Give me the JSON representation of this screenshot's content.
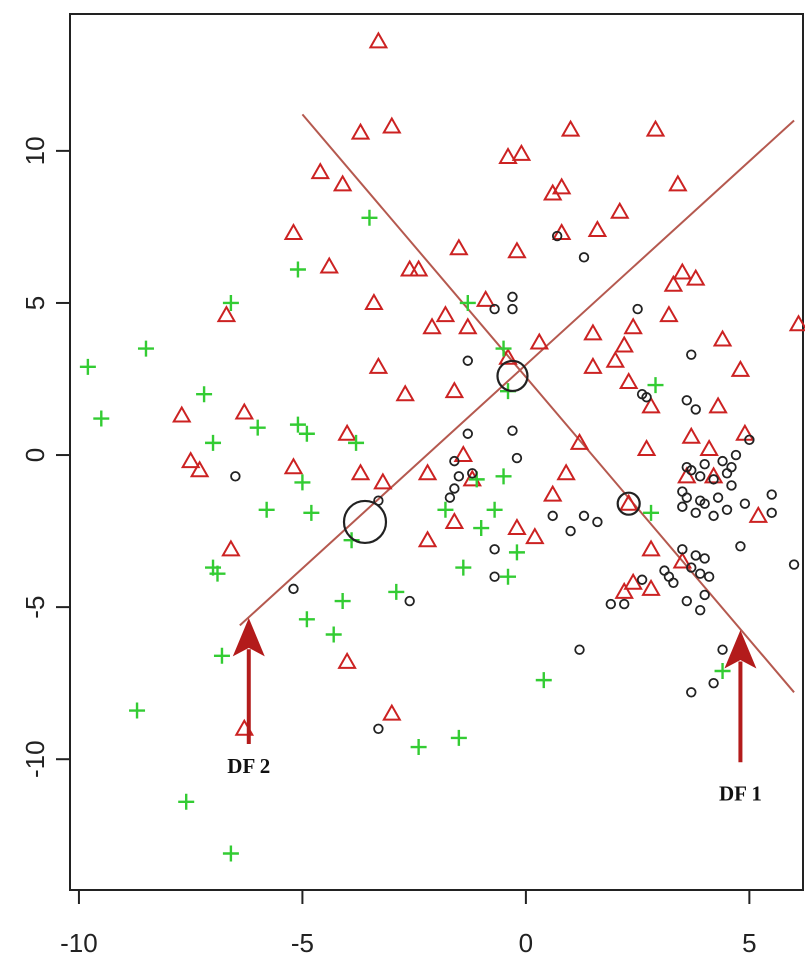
{
  "chart_data": {
    "type": "scatter",
    "title": "",
    "xlabel": "",
    "ylabel": "",
    "xlim": [
      -10.2,
      6.2
    ],
    "ylim": [
      -14.3,
      14.5
    ],
    "x_ticks": [
      -10,
      -5,
      0,
      5
    ],
    "x_tick_labels": [
      "-10",
      "-5",
      "0",
      "5"
    ],
    "y_ticks": [
      -10,
      -5,
      0,
      5,
      10
    ],
    "y_tick_labels": [
      "-10",
      "-5",
      "0",
      "5",
      "10"
    ],
    "grid": false,
    "legend": "none",
    "series": [
      {
        "marker": "triangle",
        "color": "#cc2222",
        "points": [
          [
            -3.3,
            13.6
          ],
          [
            -3.7,
            10.6
          ],
          [
            -3.0,
            10.8
          ],
          [
            -0.4,
            9.8
          ],
          [
            -0.1,
            9.9
          ],
          [
            1.0,
            10.7
          ],
          [
            2.9,
            10.7
          ],
          [
            -4.6,
            9.3
          ],
          [
            -4.1,
            8.9
          ],
          [
            0.6,
            8.6
          ],
          [
            0.8,
            8.8
          ],
          [
            3.4,
            8.9
          ],
          [
            2.1,
            8.0
          ],
          [
            -5.2,
            7.3
          ],
          [
            -1.5,
            6.8
          ],
          [
            -0.2,
            6.7
          ],
          [
            0.8,
            7.3
          ],
          [
            1.6,
            7.4
          ],
          [
            3.5,
            6.0
          ],
          [
            -4.4,
            6.2
          ],
          [
            -2.6,
            6.1
          ],
          [
            -2.4,
            6.1
          ],
          [
            3.8,
            5.8
          ],
          [
            3.3,
            5.6
          ],
          [
            -3.4,
            5.0
          ],
          [
            -1.8,
            4.6
          ],
          [
            -2.1,
            4.2
          ],
          [
            -1.3,
            4.2
          ],
          [
            -0.9,
            5.1
          ],
          [
            3.2,
            4.6
          ],
          [
            2.4,
            4.2
          ],
          [
            1.5,
            4.0
          ],
          [
            2.2,
            3.6
          ],
          [
            4.4,
            3.8
          ],
          [
            -6.7,
            4.6
          ],
          [
            0.3,
            3.7
          ],
          [
            -0.4,
            3.2
          ],
          [
            -3.3,
            2.9
          ],
          [
            1.5,
            2.9
          ],
          [
            2.0,
            3.1
          ],
          [
            4.8,
            2.8
          ],
          [
            2.3,
            2.4
          ],
          [
            -2.7,
            2.0
          ],
          [
            -1.6,
            2.1
          ],
          [
            2.8,
            1.6
          ],
          [
            4.3,
            1.6
          ],
          [
            -7.7,
            1.3
          ],
          [
            -6.3,
            1.4
          ],
          [
            -4.0,
            0.7
          ],
          [
            1.2,
            0.4
          ],
          [
            3.7,
            0.6
          ],
          [
            4.9,
            0.7
          ],
          [
            -7.5,
            -0.2
          ],
          [
            -7.3,
            -0.5
          ],
          [
            -5.2,
            -0.4
          ],
          [
            -3.7,
            -0.6
          ],
          [
            -2.2,
            -0.6
          ],
          [
            -1.4,
            0.0
          ],
          [
            0.9,
            -0.6
          ],
          [
            2.7,
            0.2
          ],
          [
            4.1,
            0.2
          ],
          [
            -3.2,
            -0.9
          ],
          [
            -1.2,
            -0.8
          ],
          [
            0.6,
            -1.3
          ],
          [
            3.6,
            -0.7
          ],
          [
            4.2,
            -0.7
          ],
          [
            -2.2,
            -2.8
          ],
          [
            -1.6,
            -2.2
          ],
          [
            -0.2,
            -2.4
          ],
          [
            0.2,
            -2.7
          ],
          [
            2.3,
            -1.6
          ],
          [
            2.8,
            -3.1
          ],
          [
            -6.6,
            -3.1
          ],
          [
            3.5,
            -3.5
          ],
          [
            2.4,
            -4.2
          ],
          [
            2.8,
            -4.4
          ],
          [
            2.2,
            -4.5
          ],
          [
            -4.0,
            -6.8
          ],
          [
            -6.3,
            -9.0
          ],
          [
            -3.0,
            -8.5
          ],
          [
            6.1,
            4.3
          ],
          [
            5.2,
            -2.0
          ]
        ]
      },
      {
        "marker": "plus",
        "color": "#33cc33",
        "points": [
          [
            -3.5,
            7.8
          ],
          [
            -5.1,
            6.1
          ],
          [
            -6.6,
            5.0
          ],
          [
            -1.3,
            5.0
          ],
          [
            -9.8,
            2.9
          ],
          [
            -8.5,
            3.5
          ],
          [
            -0.5,
            3.5
          ],
          [
            -9.5,
            1.2
          ],
          [
            -7.2,
            2.0
          ],
          [
            -0.4,
            2.1
          ],
          [
            2.9,
            2.3
          ],
          [
            -7.0,
            0.4
          ],
          [
            -6.0,
            0.9
          ],
          [
            -5.1,
            1.0
          ],
          [
            -4.9,
            0.7
          ],
          [
            -3.8,
            0.4
          ],
          [
            -5.0,
            -0.9
          ],
          [
            -1.1,
            -0.8
          ],
          [
            -0.5,
            -0.7
          ],
          [
            -5.8,
            -1.8
          ],
          [
            -4.8,
            -1.9
          ],
          [
            -1.8,
            -1.8
          ],
          [
            -1.0,
            -2.4
          ],
          [
            -0.7,
            -1.8
          ],
          [
            2.8,
            -1.9
          ],
          [
            -3.9,
            -2.8
          ],
          [
            -0.2,
            -3.2
          ],
          [
            -7.0,
            -3.7
          ],
          [
            -6.9,
            -3.9
          ],
          [
            -1.4,
            -3.7
          ],
          [
            -0.4,
            -4.0
          ],
          [
            -2.9,
            -4.5
          ],
          [
            -4.1,
            -4.8
          ],
          [
            -4.9,
            -5.4
          ],
          [
            -4.3,
            -5.9
          ],
          [
            -6.8,
            -6.6
          ],
          [
            0.4,
            -7.4
          ],
          [
            4.4,
            -7.1
          ],
          [
            -8.7,
            -8.4
          ],
          [
            -2.4,
            -9.6
          ],
          [
            -1.5,
            -9.3
          ],
          [
            -7.6,
            -11.4
          ],
          [
            -6.6,
            -13.1
          ]
        ]
      },
      {
        "marker": "circle",
        "color": "#222222",
        "points": [
          [
            1.3,
            6.5
          ],
          [
            0.7,
            7.2
          ],
          [
            -0.3,
            5.2
          ],
          [
            -0.7,
            4.8
          ],
          [
            -0.3,
            4.8
          ],
          [
            2.5,
            4.8
          ],
          [
            -1.3,
            3.1
          ],
          [
            3.7,
            3.3
          ],
          [
            2.6,
            2.0
          ],
          [
            2.7,
            1.9
          ],
          [
            3.6,
            1.8
          ],
          [
            3.8,
            1.5
          ],
          [
            5.0,
            0.5
          ],
          [
            -1.3,
            0.7
          ],
          [
            -0.3,
            0.8
          ],
          [
            -6.5,
            -0.7
          ],
          [
            -1.6,
            -0.2
          ],
          [
            -1.5,
            -0.7
          ],
          [
            -1.2,
            -0.6
          ],
          [
            -0.2,
            -0.1
          ],
          [
            -1.6,
            -1.1
          ],
          [
            -1.7,
            -1.4
          ],
          [
            -3.3,
            -1.5
          ],
          [
            0.6,
            -2.0
          ],
          [
            1.3,
            -2.0
          ],
          [
            1.6,
            -2.2
          ],
          [
            1.0,
            -2.5
          ],
          [
            -0.7,
            -3.1
          ],
          [
            -0.7,
            -4.0
          ],
          [
            -5.2,
            -4.4
          ],
          [
            -2.6,
            -4.8
          ],
          [
            1.9,
            -4.9
          ],
          [
            2.2,
            -4.9
          ],
          [
            2.6,
            -4.1
          ],
          [
            3.1,
            -3.8
          ],
          [
            3.2,
            -4.0
          ],
          [
            3.3,
            -4.2
          ],
          [
            3.6,
            -0.4
          ],
          [
            3.7,
            -0.5
          ],
          [
            3.9,
            -0.7
          ],
          [
            4.0,
            -0.3
          ],
          [
            4.2,
            -0.8
          ],
          [
            4.4,
            -0.2
          ],
          [
            4.5,
            -0.6
          ],
          [
            4.7,
            0.0
          ],
          [
            4.6,
            -0.4
          ],
          [
            4.6,
            -1.0
          ],
          [
            3.5,
            -1.2
          ],
          [
            3.6,
            -1.4
          ],
          [
            3.9,
            -1.5
          ],
          [
            4.0,
            -1.6
          ],
          [
            4.3,
            -1.4
          ],
          [
            4.5,
            -1.8
          ],
          [
            4.9,
            -1.6
          ],
          [
            3.5,
            -1.7
          ],
          [
            3.8,
            -1.9
          ],
          [
            4.2,
            -2.0
          ],
          [
            3.5,
            -3.1
          ],
          [
            3.8,
            -3.3
          ],
          [
            4.0,
            -3.4
          ],
          [
            3.7,
            -3.7
          ],
          [
            3.9,
            -3.9
          ],
          [
            4.1,
            -4.0
          ],
          [
            4.0,
            -4.6
          ],
          [
            3.6,
            -4.8
          ],
          [
            3.9,
            -5.1
          ],
          [
            4.8,
            -3.0
          ],
          [
            5.5,
            -1.3
          ],
          [
            5.5,
            -1.9
          ],
          [
            6.0,
            -3.6
          ],
          [
            4.4,
            -6.4
          ],
          [
            3.7,
            -7.8
          ],
          [
            4.2,
            -7.5
          ],
          [
            1.2,
            -6.4
          ],
          [
            -3.3,
            -9.0
          ]
        ]
      }
    ],
    "centroids": [
      [
        -3.6,
        -2.2
      ],
      [
        -0.3,
        2.6
      ],
      [
        2.3,
        -1.6
      ]
    ],
    "discriminant_lines": [
      {
        "from": [
          -5.0,
          11.2
        ],
        "to": [
          6.0,
          -7.8
        ]
      },
      {
        "from": [
          -6.4,
          -5.6
        ],
        "to": [
          6.0,
          11.0
        ]
      }
    ],
    "annotations": [
      {
        "text": "DF 2",
        "x": -6.2,
        "y": -10.0,
        "arrow_tip": [
          -6.2,
          -5.4
        ]
      },
      {
        "text": "DF 1",
        "x": 4.8,
        "y": -10.9,
        "arrow_tip": [
          4.8,
          -5.8
        ]
      }
    ]
  }
}
